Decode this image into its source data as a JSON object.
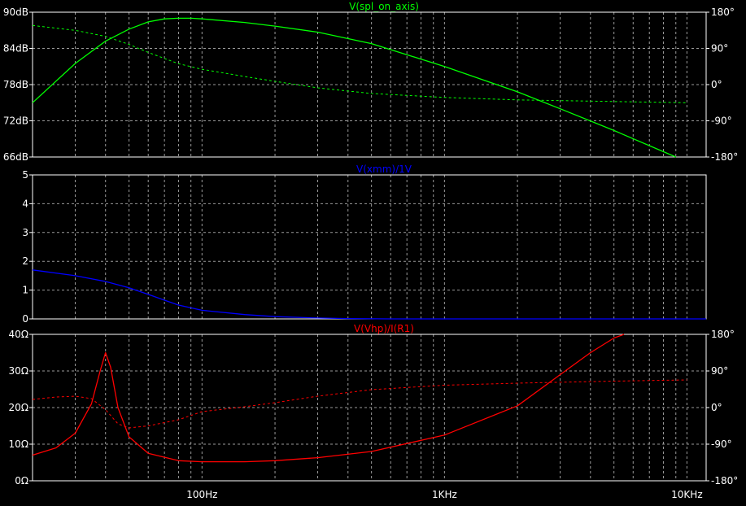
{
  "chart_data": [
    {
      "type": "line",
      "title": "V(spl_on_axis)",
      "title_color": "#00ff00",
      "x_scale": "log",
      "xlim": [
        20,
        12000
      ],
      "ylim": [
        66,
        90
      ],
      "yticks": [
        {
          "value": 66,
          "label": "66dB"
        },
        {
          "value": 72,
          "label": "72dB"
        },
        {
          "value": 78,
          "label": "78dB"
        },
        {
          "value": 84,
          "label": "84dB"
        },
        {
          "value": 90,
          "label": "90dB"
        }
      ],
      "y2lim": [
        -180,
        180
      ],
      "y2ticks": [
        {
          "value": 180,
          "label": "180°"
        },
        {
          "value": 90,
          "label": "90°"
        },
        {
          "value": 0,
          "label": "0°"
        },
        {
          "value": -90,
          "label": "-90°"
        },
        {
          "value": -180,
          "label": "-180°"
        }
      ],
      "grid": true,
      "series": [
        {
          "color": "#00ff00",
          "style": "solid",
          "axis": "left",
          "x": [
            20,
            30,
            40,
            50,
            60,
            70,
            80,
            90,
            100,
            150,
            200,
            300,
            500,
            1000,
            2000,
            3000,
            5000,
            9000
          ],
          "y": [
            75.0,
            81.5,
            85.2,
            87.2,
            88.4,
            88.9,
            89.0,
            89.0,
            88.9,
            88.3,
            87.7,
            86.7,
            84.8,
            81.0,
            76.8,
            74.0,
            70.4,
            66.0
          ]
        },
        {
          "color": "#00ff00",
          "style": "dashed",
          "axis": "right",
          "x": [
            20,
            30,
            40,
            50,
            60,
            80,
            100,
            150,
            200,
            300,
            500,
            1000,
            2000,
            5000,
            10000
          ],
          "y": [
            147,
            135,
            120,
            100,
            80,
            52,
            38,
            20,
            8,
            -8,
            -22,
            -32,
            -38,
            -42,
            -45
          ]
        }
      ]
    },
    {
      "type": "line",
      "title": "V(xmm)/1V",
      "title_color": "#0000ff",
      "x_scale": "log",
      "xlim": [
        20,
        12000
      ],
      "ylim": [
        0,
        5
      ],
      "yticks": [
        {
          "value": 0,
          "label": "0"
        },
        {
          "value": 1,
          "label": "1"
        },
        {
          "value": 2,
          "label": "2"
        },
        {
          "value": 3,
          "label": "3"
        },
        {
          "value": 4,
          "label": "4"
        },
        {
          "value": 5,
          "label": "5"
        }
      ],
      "grid": true,
      "series": [
        {
          "color": "#0000ff",
          "style": "solid",
          "axis": "left",
          "x": [
            20,
            30,
            40,
            50,
            60,
            70,
            80,
            100,
            150,
            200,
            300,
            400,
            600,
            1000,
            12000
          ],
          "y": [
            1.7,
            1.5,
            1.3,
            1.08,
            0.85,
            0.65,
            0.48,
            0.3,
            0.15,
            0.08,
            0.03,
            0.01,
            0.0,
            0.0,
            0.0
          ]
        }
      ]
    },
    {
      "type": "line",
      "title": "V(Vhp)/I(R1)",
      "title_color": "#ff0000",
      "x_scale": "log",
      "xlim": [
        20,
        12000
      ],
      "ylim": [
        0,
        40
      ],
      "yticks": [
        {
          "value": 0,
          "label": "0Ω"
        },
        {
          "value": 10,
          "label": "10Ω"
        },
        {
          "value": 20,
          "label": "20Ω"
        },
        {
          "value": 30,
          "label": "30Ω"
        },
        {
          "value": 40,
          "label": "40Ω"
        }
      ],
      "y2lim": [
        -180,
        180
      ],
      "y2ticks": [
        {
          "value": 180,
          "label": "180°"
        },
        {
          "value": 90,
          "label": "90°"
        },
        {
          "value": 0,
          "label": "0°"
        },
        {
          "value": -90,
          "label": "-90°"
        },
        {
          "value": -180,
          "label": "-180°"
        }
      ],
      "xticks": [
        {
          "value": 100,
          "label": "100Hz"
        },
        {
          "value": 1000,
          "label": "1KHz"
        },
        {
          "value": 10000,
          "label": "10KHz"
        }
      ],
      "grid": true,
      "series": [
        {
          "color": "#ff0000",
          "style": "solid",
          "axis": "left",
          "x": [
            20,
            25,
            30,
            35,
            38,
            40,
            42,
            45,
            50,
            60,
            80,
            100,
            150,
            200,
            300,
            500,
            1000,
            2000,
            3000,
            4000,
            5000,
            5500
          ],
          "y": [
            7,
            9,
            13,
            21,
            30,
            35,
            31,
            20,
            12,
            7.5,
            5.5,
            5.2,
            5.2,
            5.5,
            6.3,
            8.0,
            12.5,
            20.5,
            29.0,
            35.0,
            39.0,
            40.0
          ]
        },
        {
          "color": "#ff0000",
          "style": "dashed",
          "axis": "right",
          "x": [
            20,
            25,
            30,
            35,
            40,
            45,
            50,
            60,
            80,
            100,
            150,
            200,
            300,
            500,
            1000,
            2000,
            5000,
            10000
          ],
          "y": [
            20,
            26,
            28,
            22,
            -5,
            -40,
            -50,
            -45,
            -30,
            -10,
            2,
            12,
            28,
            44,
            55,
            60,
            65,
            68
          ]
        }
      ]
    }
  ]
}
